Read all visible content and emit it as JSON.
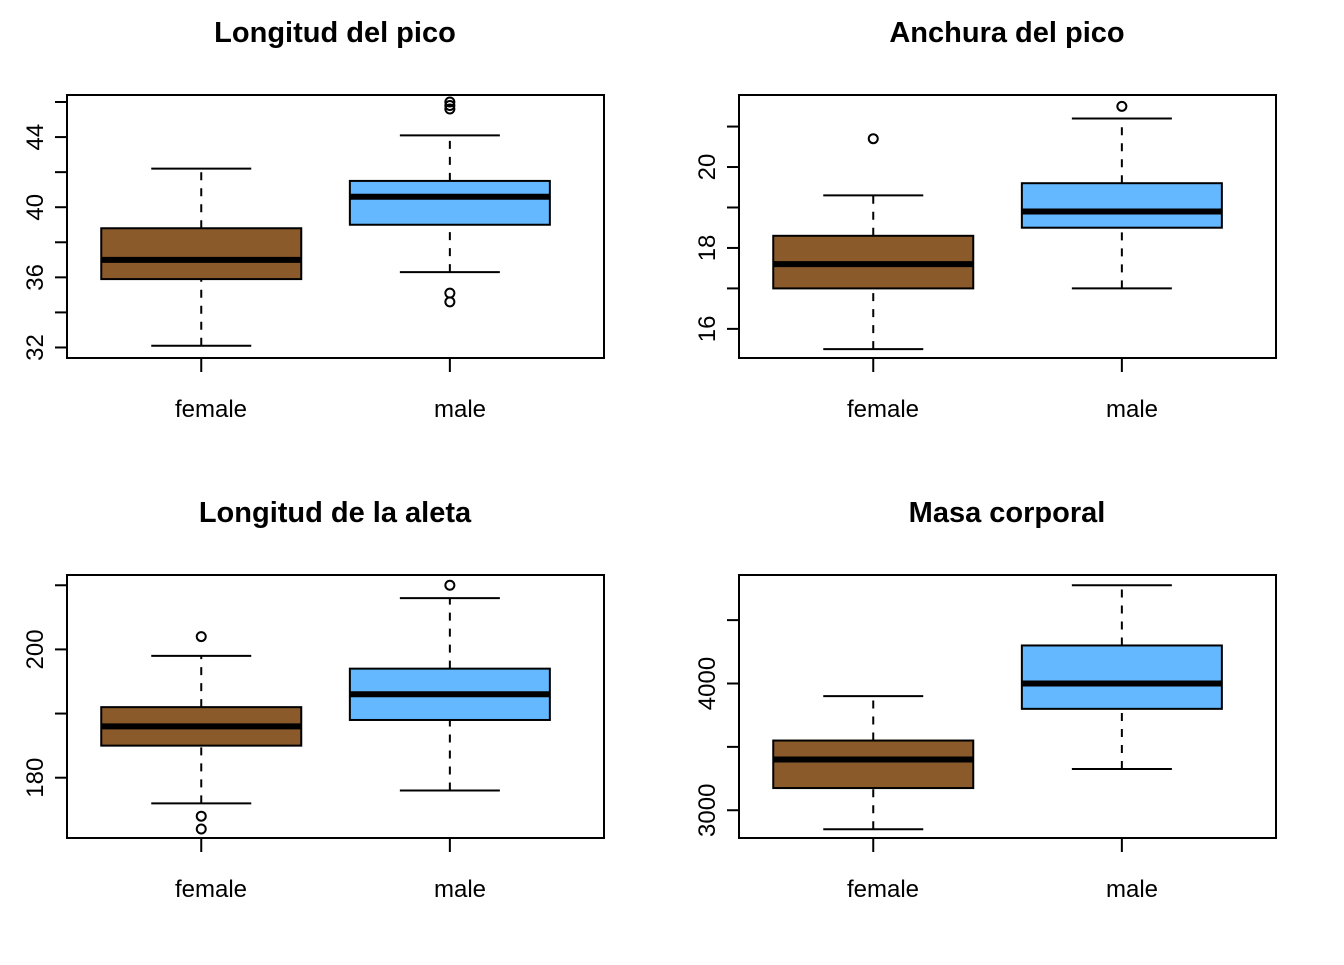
{
  "chart_data": [
    {
      "type": "boxplot",
      "title": "Longitud del pico",
      "categories": [
        "female",
        "male"
      ],
      "colors": [
        "#8B5A2B",
        "#63B8FF"
      ],
      "ylim": [
        31.4,
        46.4
      ],
      "yticks": [
        32,
        34,
        36,
        38,
        40,
        42,
        44,
        46
      ],
      "ytick_labels": [
        "32",
        "",
        "36",
        "",
        "40",
        "",
        "44",
        ""
      ],
      "boxes": [
        {
          "category": "female",
          "whisker_low": 32.1,
          "q1": 35.9,
          "median": 37.0,
          "q3": 38.8,
          "whisker_high": 42.2,
          "outliers": []
        },
        {
          "category": "male",
          "whisker_low": 36.3,
          "q1": 39.0,
          "median": 40.6,
          "q3": 41.5,
          "whisker_high": 44.1,
          "outliers": [
            34.6,
            35.1,
            45.6,
            45.8,
            46.0
          ]
        }
      ]
    },
    {
      "type": "boxplot",
      "title": "Anchura del pico",
      "categories": [
        "female",
        "male"
      ],
      "colors": [
        "#8B5A2B",
        "#63B8FF"
      ],
      "ylim": [
        15.28,
        21.78
      ],
      "yticks": [
        16,
        17,
        18,
        19,
        20,
        21
      ],
      "ytick_labels": [
        "16",
        "",
        "18",
        "",
        "20",
        ""
      ],
      "boxes": [
        {
          "category": "female",
          "whisker_low": 15.5,
          "q1": 17.0,
          "median": 17.6,
          "q3": 18.3,
          "whisker_high": 19.3,
          "outliers": [
            20.7
          ]
        },
        {
          "category": "male",
          "whisker_low": 17.0,
          "q1": 18.5,
          "median": 18.9,
          "q3": 19.6,
          "whisker_high": 21.2,
          "outliers": [
            21.5
          ]
        }
      ]
    },
    {
      "type": "boxplot",
      "title": "Longitud de la aleta",
      "categories": [
        "female",
        "male"
      ],
      "colors": [
        "#8B5A2B",
        "#63B8FF"
      ],
      "ylim": [
        170.6,
        211.6
      ],
      "yticks": [
        180,
        190,
        200,
        210
      ],
      "ytick_labels": [
        "180",
        "",
        "200",
        ""
      ],
      "boxes": [
        {
          "category": "female",
          "whisker_low": 176,
          "q1": 185,
          "median": 188,
          "q3": 191,
          "whisker_high": 199,
          "outliers": [
            172,
            174,
            202
          ]
        },
        {
          "category": "male",
          "whisker_low": 178,
          "q1": 189,
          "median": 193,
          "q3": 197,
          "whisker_high": 208,
          "outliers": [
            210
          ]
        }
      ]
    },
    {
      "type": "boxplot",
      "title": "Masa corporal",
      "categories": [
        "female",
        "male"
      ],
      "colors": [
        "#8B5A2B",
        "#63B8FF"
      ],
      "ylim": [
        2781,
        4856
      ],
      "yticks": [
        3000,
        3500,
        4000,
        4500
      ],
      "ytick_labels": [
        "3000",
        "",
        "4000",
        ""
      ],
      "boxes": [
        {
          "category": "female",
          "whisker_low": 2850,
          "q1": 3175,
          "median": 3400,
          "q3": 3550,
          "whisker_high": 3900,
          "outliers": []
        },
        {
          "category": "male",
          "whisker_low": 3325,
          "q1": 3800,
          "median": 4000,
          "q3": 4300,
          "whisker_high": 4775,
          "outliers": []
        }
      ]
    }
  ]
}
